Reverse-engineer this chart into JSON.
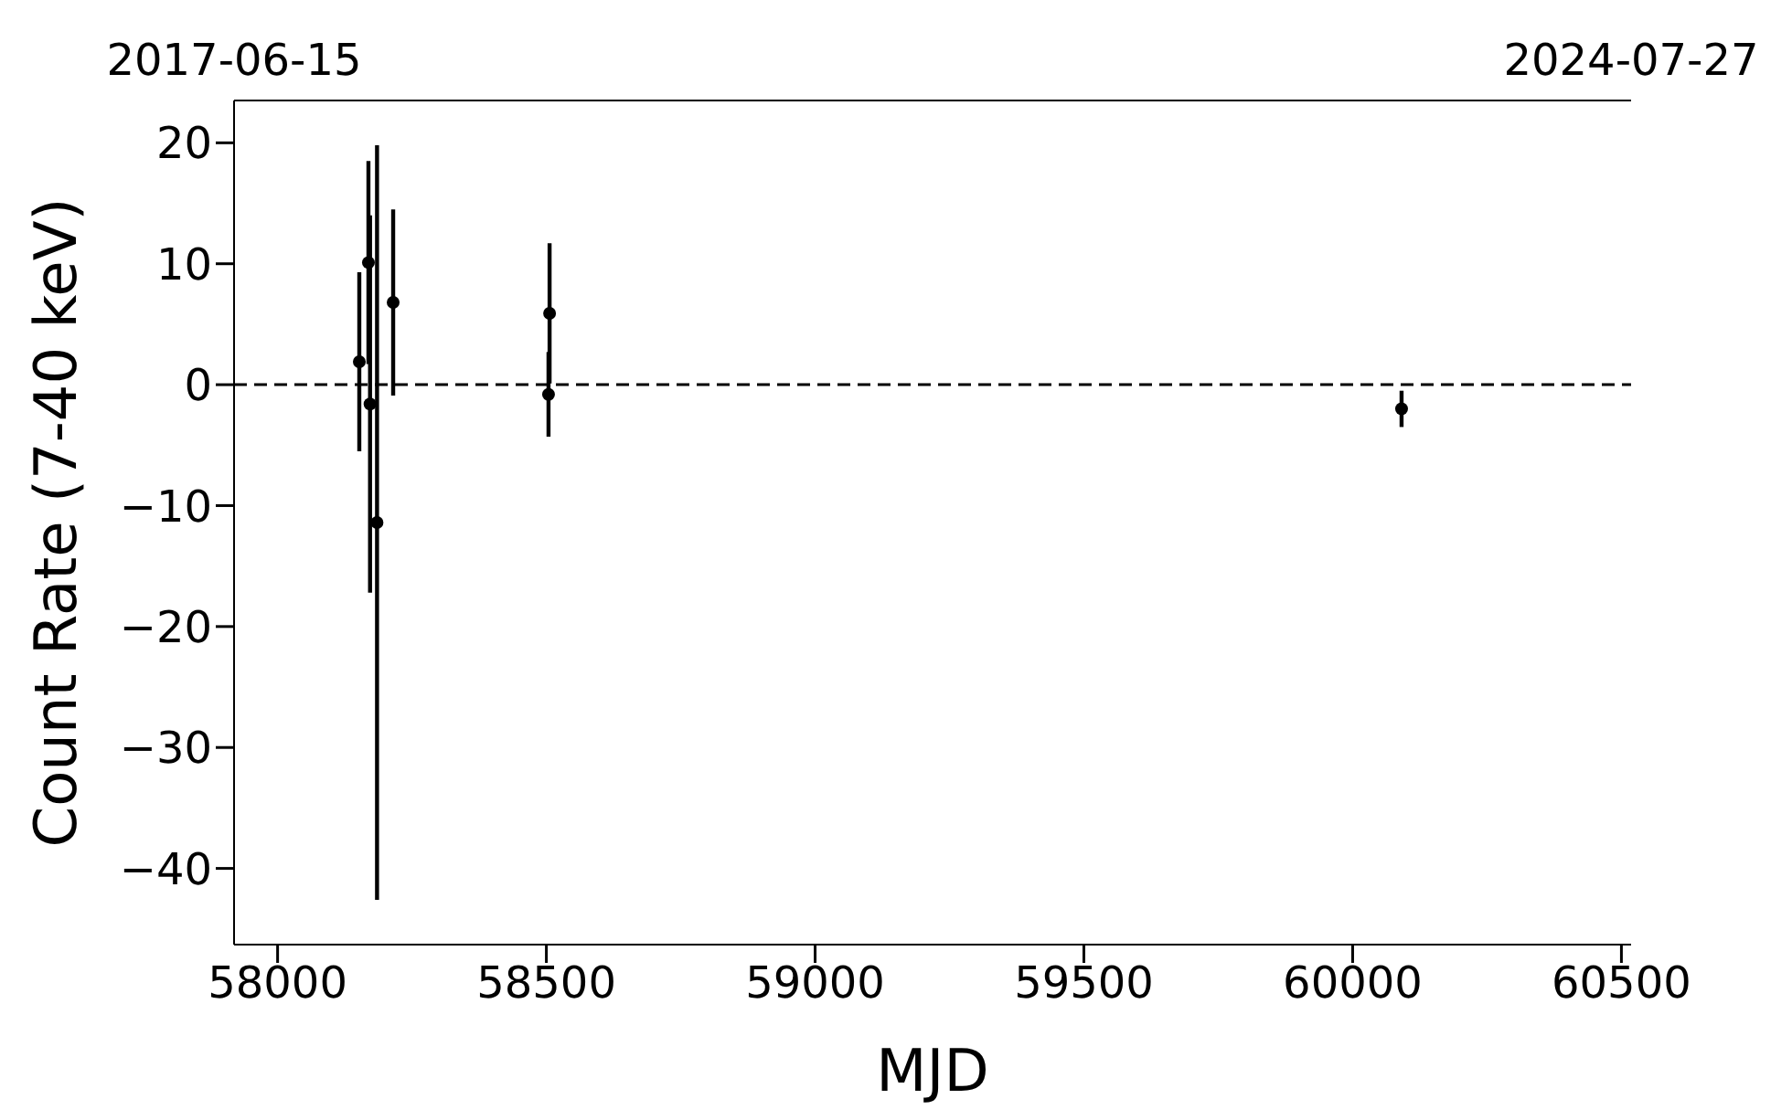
{
  "chart_data": {
    "type": "scatter",
    "xlabel": "MJD",
    "ylabel": "Count Rate (7-40 keV)",
    "x": [
      58152,
      58169,
      58172,
      58185,
      58215,
      58504,
      58506,
      60091
    ],
    "values": [
      1.9,
      10.1,
      -1.6,
      -11.4,
      6.8,
      -0.8,
      5.9,
      -2.0
    ],
    "errors": [
      7.4,
      8.4,
      15.6,
      31.2,
      7.7,
      3.5,
      5.8,
      1.5
    ],
    "color": "#000000",
    "marker": "circle",
    "xlim": [
      57919,
      60518
    ],
    "xticks": [
      58000,
      58500,
      59000,
      59500,
      60000,
      60500
    ],
    "x2lim": [
      "2017-06-15",
      "2024-07-27"
    ],
    "x2ticks": [
      "2017-06-15",
      "2024-07-27"
    ],
    "ylim": [
      -46.3,
      23.5
    ],
    "yticks": [
      -40,
      -30,
      -20,
      -10,
      0,
      10,
      20
    ],
    "ref_lines": [
      {
        "axis": "y",
        "value": 0,
        "color": "#000000",
        "line_style": "dashed"
      }
    ]
  }
}
